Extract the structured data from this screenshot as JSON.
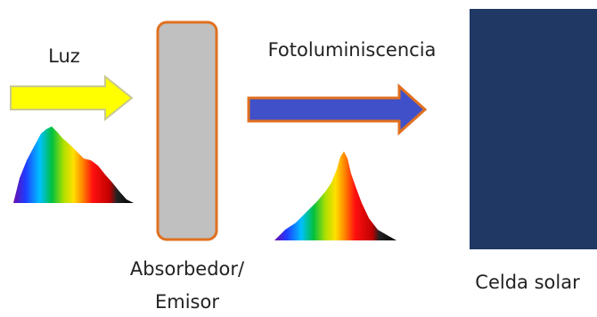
{
  "light": {
    "label": "Luz"
  },
  "photoluminescence": {
    "label": "Fotoluminiscencia"
  },
  "absorber": {
    "label_line1": "Absorbedor/",
    "label_line2": "Emisor"
  },
  "solar_cell": {
    "label": "Celda solar"
  }
}
